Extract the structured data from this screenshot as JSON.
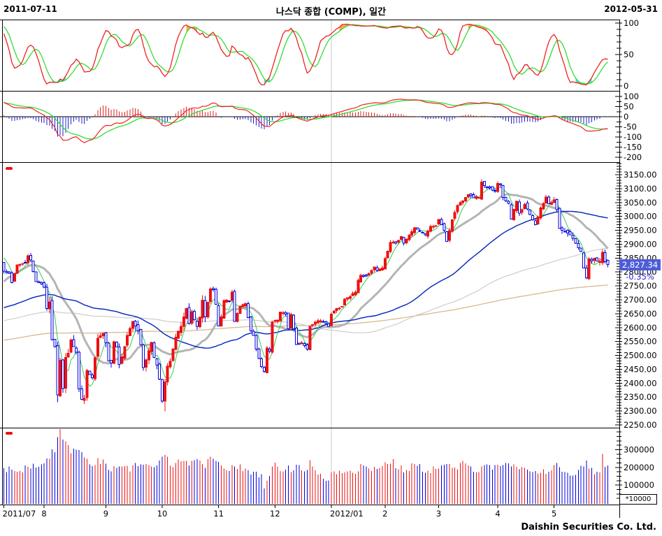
{
  "header": {
    "start_date": "2011-07-11",
    "title": "나스닥 종합 (COMP), 일간",
    "end_date": "2012-05-31"
  },
  "footer": {
    "attribution": "Daishin Securities Co. Ltd."
  },
  "price_label": {
    "value": "2,827.34",
    "change_pct": "-0.35%"
  },
  "volume_unit_label": "*10000",
  "axes": {
    "stoch_ticks": [
      0,
      50,
      100
    ],
    "stoch_minor_step": 10,
    "macd_ticks": [
      100,
      50,
      0,
      -50,
      -100,
      -150,
      -200
    ],
    "macd_minor_step": 25,
    "price_axis": {
      "min": 2250,
      "max": 3150,
      "label_step": 50,
      "minor_step": 10
    },
    "volume_ticks": [
      100000,
      200000,
      300000
    ],
    "volume_minor_step": 25000,
    "month_ticks": [
      {
        "label": "2011/07",
        "day": 0,
        "align": "start"
      },
      {
        "label": "8",
        "day": 15,
        "align": "middle"
      },
      {
        "label": "9",
        "day": 38,
        "align": "middle"
      },
      {
        "label": "10",
        "day": 59,
        "align": "middle"
      },
      {
        "label": "11",
        "day": 80,
        "align": "middle"
      },
      {
        "label": "12",
        "day": 101,
        "align": "middle"
      },
      {
        "label": "2012/01",
        "day": 122,
        "align": "start"
      },
      {
        "label": "2",
        "day": 142,
        "align": "middle"
      },
      {
        "label": "3",
        "day": 162,
        "align": "middle"
      },
      {
        "label": "4",
        "day": 184,
        "align": "middle"
      },
      {
        "label": "5",
        "day": 205,
        "align": "middle"
      }
    ]
  },
  "chart_data": {
    "type": "candlestick-multi-panel",
    "instrument": "나스닥 종합 (COMP)",
    "period": "일간",
    "date_range": [
      "2011-07-11",
      "2012-05-31"
    ],
    "num_days": 226,
    "panels": [
      {
        "name": "stochastic",
        "range": [
          0,
          100
        ],
        "series": [
          "slow-k-red",
          "slow-d-green"
        ],
        "fills": [
          "overbought-orange",
          "oversold-cyan"
        ]
      },
      {
        "name": "macd",
        "range": [
          -200,
          100
        ],
        "series": [
          "macd-red",
          "signal-green",
          "histogram-red-pos-blue-neg"
        ]
      },
      {
        "name": "price-candles",
        "range": [
          2250,
          3150
        ],
        "overlays": [
          "ma5-green",
          "ma20-gray-thick",
          "ma60-blue",
          "ma120-lightgray",
          "ma240-tan"
        ]
      },
      {
        "name": "volume",
        "range": [
          0,
          400000
        ],
        "unit": "*10000"
      }
    ],
    "indicators": {
      "ma_windows": [
        5,
        20,
        60,
        120,
        240
      ],
      "stochastic": [
        12,
        5,
        5
      ],
      "macd": [
        12,
        26,
        9
      ]
    },
    "last": {
      "close": 2827.34,
      "change_pct": -0.35
    },
    "close_anchors": [
      [
        0,
        2803
      ],
      [
        2,
        2796
      ],
      [
        3,
        2762
      ],
      [
        5,
        2826
      ],
      [
        8,
        2834
      ],
      [
        9,
        2858
      ],
      [
        10,
        2843
      ],
      [
        12,
        2765
      ],
      [
        14,
        2756
      ],
      [
        15,
        2745
      ],
      [
        16,
        2669
      ],
      [
        17,
        2693
      ],
      [
        18,
        2556
      ],
      [
        19,
        2532
      ],
      [
        20,
        2358
      ],
      [
        21,
        2483
      ],
      [
        22,
        2381
      ],
      [
        23,
        2493
      ],
      [
        24,
        2508
      ],
      [
        25,
        2555
      ],
      [
        27,
        2511
      ],
      [
        28,
        2380
      ],
      [
        29,
        2342
      ],
      [
        30,
        2345
      ],
      [
        31,
        2446
      ],
      [
        33,
        2420
      ],
      [
        35,
        2562
      ],
      [
        37,
        2579
      ],
      [
        38,
        2546
      ],
      [
        39,
        2480
      ],
      [
        40,
        2473
      ],
      [
        41,
        2549
      ],
      [
        42,
        2530
      ],
      [
        43,
        2468
      ],
      [
        44,
        2495
      ],
      [
        46,
        2572
      ],
      [
        48,
        2622
      ],
      [
        50,
        2590
      ],
      [
        51,
        2538
      ],
      [
        52,
        2456
      ],
      [
        54,
        2516
      ],
      [
        55,
        2547
      ],
      [
        56,
        2492
      ],
      [
        57,
        2465
      ],
      [
        58,
        2415
      ],
      [
        59,
        2336
      ],
      [
        60,
        2405
      ],
      [
        61,
        2461
      ],
      [
        62,
        2479
      ],
      [
        64,
        2566
      ],
      [
        66,
        2605
      ],
      [
        68,
        2668
      ],
      [
        69,
        2614
      ],
      [
        70,
        2657
      ],
      [
        72,
        2604
      ],
      [
        73,
        2637
      ],
      [
        74,
        2699
      ],
      [
        75,
        2638
      ],
      [
        77,
        2739
      ],
      [
        78,
        2737
      ],
      [
        79,
        2684
      ],
      [
        80,
        2606
      ],
      [
        81,
        2639
      ],
      [
        82,
        2697
      ],
      [
        84,
        2695
      ],
      [
        85,
        2728
      ],
      [
        86,
        2622
      ],
      [
        88,
        2678
      ],
      [
        90,
        2686
      ],
      [
        92,
        2588
      ],
      [
        93,
        2572
      ],
      [
        94,
        2523
      ],
      [
        96,
        2460
      ],
      [
        97,
        2442
      ],
      [
        98,
        2527
      ],
      [
        99,
        2515
      ],
      [
        100,
        2620
      ],
      [
        102,
        2627
      ],
      [
        103,
        2656
      ],
      [
        105,
        2649
      ],
      [
        106,
        2596
      ],
      [
        107,
        2647
      ],
      [
        109,
        2539
      ],
      [
        111,
        2545
      ],
      [
        113,
        2523
      ],
      [
        114,
        2604
      ],
      [
        116,
        2619
      ],
      [
        118,
        2625
      ],
      [
        120,
        2614
      ],
      [
        121,
        2605
      ],
      [
        122,
        2649
      ],
      [
        124,
        2669
      ],
      [
        126,
        2676
      ],
      [
        127,
        2702
      ],
      [
        129,
        2711
      ],
      [
        131,
        2728
      ],
      [
        132,
        2770
      ],
      [
        133,
        2788
      ],
      [
        135,
        2786
      ],
      [
        137,
        2806
      ],
      [
        138,
        2818
      ],
      [
        139,
        2805
      ],
      [
        141,
        2814
      ],
      [
        142,
        2848
      ],
      [
        144,
        2906
      ],
      [
        146,
        2904
      ],
      [
        148,
        2927
      ],
      [
        149,
        2904
      ],
      [
        151,
        2932
      ],
      [
        153,
        2959
      ],
      [
        155,
        2948
      ],
      [
        157,
        2934
      ],
      [
        159,
        2964
      ],
      [
        161,
        2967
      ],
      [
        162,
        2989
      ],
      [
        164,
        2950
      ],
      [
        165,
        2910
      ],
      [
        167,
        2988
      ],
      [
        169,
        3040
      ],
      [
        171,
        3056
      ],
      [
        173,
        3078
      ],
      [
        175,
        3067
      ],
      [
        177,
        3068
      ],
      [
        178,
        3123
      ],
      [
        180,
        3104
      ],
      [
        182,
        3095
      ],
      [
        183,
        3091
      ],
      [
        184,
        3119
      ],
      [
        185,
        3114
      ],
      [
        186,
        3068
      ],
      [
        188,
        3047
      ],
      [
        189,
        2991
      ],
      [
        191,
        3055
      ],
      [
        192,
        3011
      ],
      [
        194,
        3043
      ],
      [
        196,
        3007
      ],
      [
        198,
        2970
      ],
      [
        200,
        3030
      ],
      [
        202,
        3069
      ],
      [
        203,
        3046
      ],
      [
        204,
        3050
      ],
      [
        205,
        3060
      ],
      [
        206,
        3024
      ],
      [
        207,
        2956
      ],
      [
        209,
        2946
      ],
      [
        211,
        2934
      ],
      [
        213,
        2903
      ],
      [
        215,
        2874
      ],
      [
        216,
        2814
      ],
      [
        217,
        2779
      ],
      [
        218,
        2847
      ],
      [
        219,
        2839
      ],
      [
        220,
        2850
      ],
      [
        221,
        2839
      ],
      [
        222,
        2838
      ],
      [
        223,
        2871
      ],
      [
        224,
        2837
      ],
      [
        225,
        2827.34
      ]
    ],
    "volume_anchors": [
      [
        0,
        195000
      ],
      [
        4,
        180000
      ],
      [
        8,
        195000
      ],
      [
        12,
        205000
      ],
      [
        15,
        215000
      ],
      [
        17,
        255000
      ],
      [
        18,
        295000
      ],
      [
        19,
        310000
      ],
      [
        20,
        380000
      ],
      [
        21,
        390000
      ],
      [
        22,
        355000
      ],
      [
        24,
        320000
      ],
      [
        26,
        300000
      ],
      [
        28,
        275000
      ],
      [
        30,
        245000
      ],
      [
        33,
        225000
      ],
      [
        36,
        235000
      ],
      [
        39,
        195000
      ],
      [
        43,
        185000
      ],
      [
        47,
        195000
      ],
      [
        52,
        235000
      ],
      [
        55,
        195000
      ],
      [
        58,
        220000
      ],
      [
        60,
        260000
      ],
      [
        63,
        215000
      ],
      [
        66,
        225000
      ],
      [
        70,
        230000
      ],
      [
        74,
        215000
      ],
      [
        77,
        235000
      ],
      [
        80,
        215000
      ],
      [
        84,
        190000
      ],
      [
        86,
        215000
      ],
      [
        90,
        180000
      ],
      [
        94,
        170000
      ],
      [
        96,
        150000
      ],
      [
        97,
        90000
      ],
      [
        99,
        170000
      ],
      [
        101,
        205000
      ],
      [
        104,
        195000
      ],
      [
        107,
        190000
      ],
      [
        109,
        220000
      ],
      [
        112,
        180000
      ],
      [
        114,
        225000
      ],
      [
        117,
        160000
      ],
      [
        119,
        140000
      ],
      [
        121,
        125000
      ],
      [
        122,
        170000
      ],
      [
        125,
        180000
      ],
      [
        128,
        185000
      ],
      [
        131,
        180000
      ],
      [
        133,
        210000
      ],
      [
        136,
        190000
      ],
      [
        139,
        205000
      ],
      [
        142,
        215000
      ],
      [
        144,
        240000
      ],
      [
        147,
        195000
      ],
      [
        150,
        185000
      ],
      [
        153,
        215000
      ],
      [
        156,
        190000
      ],
      [
        159,
        185000
      ],
      [
        162,
        205000
      ],
      [
        165,
        205000
      ],
      [
        168,
        195000
      ],
      [
        171,
        215000
      ],
      [
        174,
        195000
      ],
      [
        177,
        190000
      ],
      [
        179,
        230000
      ],
      [
        182,
        200000
      ],
      [
        185,
        195000
      ],
      [
        187,
        210000
      ],
      [
        189,
        215000
      ],
      [
        191,
        195000
      ],
      [
        194,
        180000
      ],
      [
        196,
        172000
      ],
      [
        198,
        188000
      ],
      [
        200,
        178000
      ],
      [
        202,
        182000
      ],
      [
        204,
        192000
      ],
      [
        206,
        205000
      ],
      [
        208,
        185000
      ],
      [
        210,
        172000
      ],
      [
        212,
        162000
      ],
      [
        214,
        172000
      ],
      [
        216,
        218000
      ],
      [
        217,
        232000
      ],
      [
        218,
        188000
      ],
      [
        220,
        170000
      ],
      [
        222,
        158000
      ],
      [
        223,
        292000
      ],
      [
        224,
        205000
      ],
      [
        225,
        235000
      ]
    ],
    "wick_overrides": {
      "20": {
        "low": 2332
      },
      "60": {
        "low": 2299
      },
      "178": {
        "high": 3134
      },
      "217": {
        "low": 2774
      }
    },
    "colors": {
      "up": "#ee1111",
      "down": "#0000dd",
      "ma5": "#33cc55",
      "ma20": "#b4b4b4",
      "ma60": "#0022bb",
      "ma120": "#c9c9c9",
      "ma240": "#d9b98c",
      "osc_red": "#ee2222",
      "osc_green": "#33dd33",
      "fill_overbought": "#ffa64d",
      "fill_oversold": "#4dd9d9",
      "hist_pos": "#dd2222",
      "hist_neg": "#2222cc",
      "grid": "#c8c8c8",
      "axis": "#000000",
      "label_box": "#4d5cd9",
      "change_text": "#2222dd"
    }
  }
}
